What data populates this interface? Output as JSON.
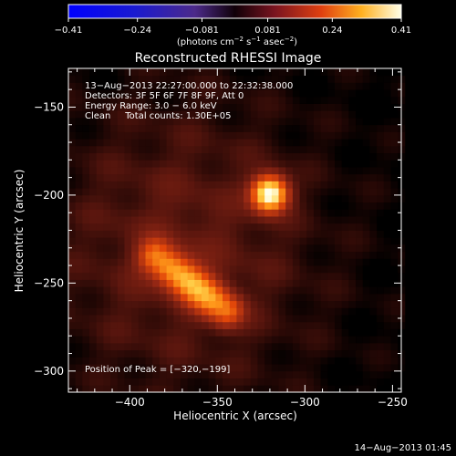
{
  "chart_data": {
    "type": "heatmap",
    "title": "Reconstructed RHESSI Image",
    "xlabel": "Heliocentric X (arcsec)",
    "ylabel": "Heliocentric Y (arcsec)",
    "xlim": [
      -435,
      -245
    ],
    "ylim": [
      -312,
      -128
    ],
    "x_ticks": [
      -400,
      -350,
      -300,
      -250
    ],
    "y_ticks": [
      -150,
      -200,
      -250,
      -300
    ],
    "x_tick_labels": [
      "−400",
      "−350",
      "−300",
      "−250"
    ],
    "y_tick_labels": [
      "−150",
      "−200",
      "−250",
      "−300"
    ],
    "colorbar": {
      "min": -0.41,
      "max": 0.41,
      "ticks": [
        -0.41,
        -0.24,
        -0.081,
        0.081,
        0.24,
        0.41
      ],
      "tick_labels": [
        "−0.41",
        "−0.24",
        "−0.081",
        "0.081",
        "0.24",
        "0.41"
      ],
      "unit_prefix": "(photons cm",
      "unit_exp1": "−2",
      "unit_mid1": " s",
      "unit_exp2": "−1",
      "unit_mid2": " asec",
      "unit_exp3": "−2",
      "unit_suffix": ")"
    },
    "annotations": [
      "13−Aug−2013 22:27:00.000 to 22:32:38.000",
      "Detectors: 3F 5F 6F 7F 8F 9F, Att 0",
      "Energy Range: 3.0 − 6.0 keV",
      "Clean     Total counts: 1.30E+05"
    ],
    "peak_label": "Position of Peak = [−320,−199]",
    "peak": {
      "x": -320,
      "y": -199
    },
    "sources": [
      {
        "shape": "gaussian",
        "x": -320,
        "y": -199,
        "sx": 7,
        "sy": 7,
        "amplitude": 0.41
      },
      {
        "shape": "arc",
        "x0": -385,
        "y0": -235,
        "x1": -345,
        "y1": -265,
        "width": 7,
        "amplitude": 0.27
      },
      {
        "shape": "diffuse",
        "x": -370,
        "y": -230,
        "sx": 55,
        "sy": 60,
        "amplitude": 0.07
      }
    ]
  },
  "footer_date": "14−Aug−2013 01:45"
}
